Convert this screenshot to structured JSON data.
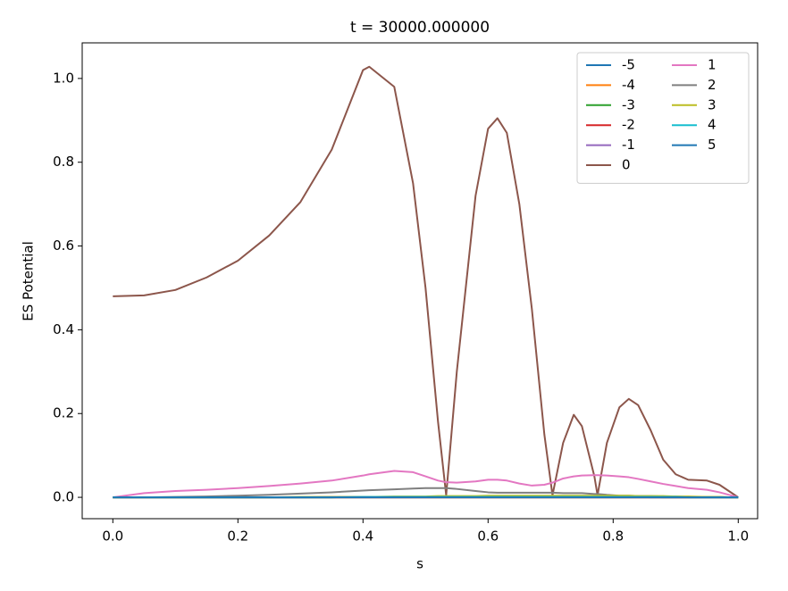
{
  "chart_data": {
    "type": "line",
    "title": "t = 30000.000000",
    "xlabel": "s",
    "ylabel": "ES Potential",
    "xlim": [
      -0.049,
      1.031
    ],
    "ylim": [
      -0.051,
      1.085
    ],
    "xticks": [
      {
        "value": 0,
        "label": "0.0"
      },
      0.2,
      0.4,
      0.6,
      0.8,
      {
        "value": 1,
        "label": "1.0"
      }
    ],
    "yticks": [
      {
        "value": 0,
        "label": "0.0"
      },
      0.2,
      0.4,
      0.6,
      0.8,
      {
        "value": 1,
        "label": "1.0"
      }
    ],
    "legend": "upper right",
    "legend_columns": 2,
    "x": [
      0,
      0.05,
      0.1,
      0.15,
      0.2,
      0.25,
      0.3,
      0.35,
      0.4,
      0.41,
      0.45,
      0.48,
      0.5,
      0.52,
      0.533,
      0.55,
      0.58,
      0.6,
      0.615,
      0.63,
      0.65,
      0.67,
      0.69,
      0.703,
      0.72,
      0.737,
      0.75,
      0.77,
      0.775,
      0.79,
      0.81,
      0.825,
      0.84,
      0.86,
      0.88,
      0.9,
      0.92,
      0.95,
      0.97,
      0.99,
      1.0
    ],
    "series": [
      {
        "name": "-5",
        "color": "#1f77b4",
        "values": [
          0,
          0,
          0,
          0,
          0,
          0,
          0,
          0,
          0,
          0,
          0,
          0,
          0,
          0,
          0,
          0,
          0,
          0,
          0,
          0,
          0,
          0,
          0,
          0,
          0,
          0,
          0,
          0,
          0,
          0,
          0,
          0,
          0,
          0,
          0,
          0,
          0,
          0,
          0,
          0,
          0
        ]
      },
      {
        "name": "-4",
        "color": "#ff7f0e",
        "values": [
          0,
          0,
          0,
          0,
          0,
          0,
          0,
          0,
          0,
          0,
          0,
          0,
          0,
          0,
          0,
          0,
          0,
          0,
          0,
          0,
          0,
          0,
          0,
          0,
          0,
          0,
          0,
          0,
          0,
          0,
          0,
          0,
          0,
          0,
          0,
          0,
          0,
          0,
          0,
          0,
          0
        ]
      },
      {
        "name": "-3",
        "color": "#2ca02c",
        "values": [
          0,
          0,
          0,
          0,
          0,
          0,
          0,
          0,
          0.001,
          0.001,
          0.001,
          0.001,
          0.001,
          0.001,
          0.001,
          0.001,
          0.001,
          0.001,
          0.001,
          0.001,
          0.001,
          0.001,
          0.001,
          0.001,
          0.001,
          0.001,
          0.001,
          0.001,
          0.001,
          0.001,
          0.001,
          0.001,
          0.001,
          0.001,
          0,
          0,
          0,
          0,
          0,
          0,
          0
        ]
      },
      {
        "name": "-2",
        "color": "#d62728",
        "values": [
          0,
          0,
          0,
          0,
          0,
          0,
          0,
          0,
          0,
          0,
          0,
          0,
          0,
          0,
          0,
          0,
          0,
          0,
          0,
          0,
          0,
          0,
          0,
          0,
          0,
          0,
          0,
          0,
          0,
          0,
          0,
          0,
          0,
          0,
          0,
          0,
          0,
          0,
          0,
          0,
          0
        ]
      },
      {
        "name": "-1",
        "color": "#9467bd",
        "values": [
          0,
          0,
          0,
          0,
          0,
          0,
          0,
          0.001,
          0.001,
          0.001,
          0.001,
          0.001,
          0.001,
          0.001,
          0.001,
          0.001,
          0.001,
          0.001,
          0.001,
          0.001,
          0.001,
          0.001,
          0.001,
          0.001,
          0.001,
          0.001,
          0.001,
          0.001,
          0.001,
          0.001,
          0.001,
          0.001,
          0.001,
          0,
          0,
          0,
          0,
          0,
          0,
          0,
          0
        ]
      },
      {
        "name": "0",
        "color": "#8c564b",
        "values": [
          0.48,
          0.482,
          0.495,
          0.525,
          0.565,
          0.625,
          0.705,
          0.83,
          1.02,
          1.028,
          0.98,
          0.75,
          0.5,
          0.18,
          0.005,
          0.3,
          0.72,
          0.88,
          0.905,
          0.87,
          0.7,
          0.45,
          0.15,
          0.005,
          0.13,
          0.197,
          0.17,
          0.05,
          0.005,
          0.13,
          0.215,
          0.235,
          0.22,
          0.16,
          0.09,
          0.055,
          0.042,
          0.04,
          0.03,
          0.01,
          0
        ]
      },
      {
        "name": "1",
        "color": "#e377c2",
        "values": [
          0,
          0.01,
          0.015,
          0.018,
          0.022,
          0.027,
          0.033,
          0.04,
          0.052,
          0.055,
          0.063,
          0.06,
          0.05,
          0.04,
          0.036,
          0.035,
          0.038,
          0.042,
          0.042,
          0.04,
          0.033,
          0.028,
          0.03,
          0.035,
          0.045,
          0.05,
          0.052,
          0.053,
          0.053,
          0.052,
          0.05,
          0.048,
          0.044,
          0.038,
          0.032,
          0.027,
          0.022,
          0.018,
          0.012,
          0.004,
          0
        ]
      },
      {
        "name": "2",
        "color": "#7f7f7f",
        "values": [
          0,
          0,
          0.001,
          0.002,
          0.004,
          0.006,
          0.009,
          0.012,
          0.016,
          0.017,
          0.019,
          0.021,
          0.022,
          0.022,
          0.022,
          0.02,
          0.015,
          0.012,
          0.011,
          0.011,
          0.011,
          0.011,
          0.011,
          0.011,
          0.01,
          0.01,
          0.01,
          0.008,
          0.008,
          0.006,
          0.004,
          0.004,
          0.003,
          0.003,
          0.002,
          0.002,
          0.001,
          0.001,
          0.001,
          0,
          0
        ]
      },
      {
        "name": "3",
        "color": "#bcbd22",
        "values": [
          0,
          0,
          0,
          0,
          0,
          0,
          0.001,
          0.001,
          0.001,
          0.001,
          0.002,
          0.002,
          0.002,
          0.003,
          0.003,
          0.003,
          0.003,
          0.004,
          0.004,
          0.004,
          0.004,
          0.004,
          0.004,
          0.004,
          0.004,
          0.004,
          0.004,
          0.004,
          0.004,
          0.004,
          0.004,
          0.004,
          0.003,
          0.003,
          0.003,
          0.002,
          0.002,
          0.001,
          0.001,
          0,
          0
        ]
      },
      {
        "name": "4",
        "color": "#17becf",
        "values": [
          0,
          0,
          0,
          0,
          0,
          0,
          0,
          0,
          0.001,
          0.001,
          0.001,
          0.001,
          0.001,
          0.001,
          0.001,
          0.001,
          0.001,
          0.001,
          0.001,
          0.001,
          0.001,
          0.001,
          0.001,
          0.001,
          0.001,
          0.001,
          0.001,
          0.001,
          0.001,
          0.001,
          0.001,
          0.001,
          0.001,
          0.001,
          0.001,
          0.001,
          0,
          0,
          0,
          0,
          0
        ]
      },
      {
        "name": "5",
        "color": "#1f77b4",
        "values": [
          0,
          0,
          0,
          0,
          0,
          0,
          0,
          0,
          0,
          0,
          0,
          0,
          0,
          0,
          0,
          0,
          0,
          0,
          0,
          0,
          0,
          0,
          0,
          0,
          0,
          0,
          0,
          0,
          0,
          0,
          0,
          0,
          0,
          0,
          0,
          0,
          0,
          0,
          0,
          0,
          0
        ]
      }
    ]
  }
}
